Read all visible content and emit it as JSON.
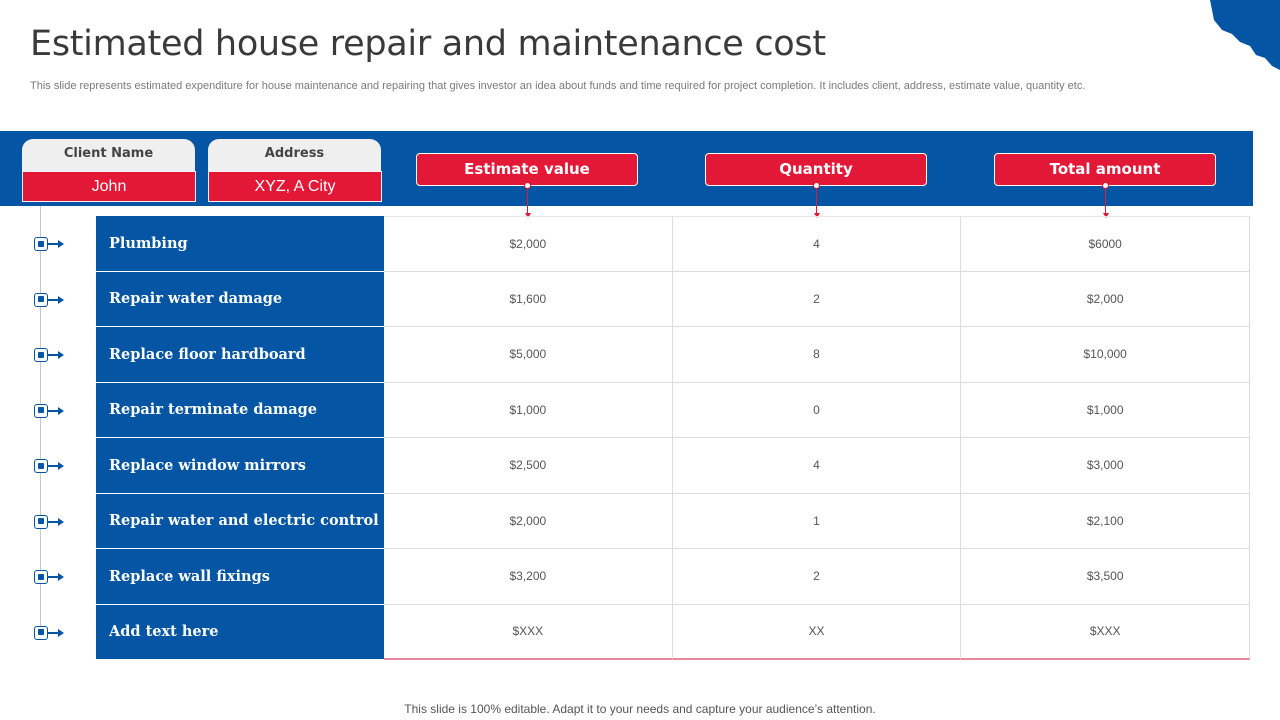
{
  "title": "Estimated house repair and maintenance cost",
  "subtitle": "This slide represents estimated expenditure for house maintenance and repairing that gives investor an idea about funds and time required for project completion. It includes client, address, estimate value, quantity etc.",
  "client": {
    "name_label": "Client Name",
    "name_value": "John",
    "address_label": "Address",
    "address_value": "XYZ, A City"
  },
  "columns": [
    "Estimate value",
    "Quantity",
    "Total amount"
  ],
  "rows": [
    {
      "label": "Plumbing",
      "estimate": "$2,000",
      "quantity": "4",
      "total": "$6000"
    },
    {
      "label": "Repair water damage",
      "estimate": "$1,600",
      "quantity": "2",
      "total": "$2,000"
    },
    {
      "label": "Replace floor hardboard",
      "estimate": "$5,000",
      "quantity": "8",
      "total": "$10,000"
    },
    {
      "label": "Repair terminate damage",
      "estimate": "$1,000",
      "quantity": "0",
      "total": "$1,000"
    },
    {
      "label": "Replace window mirrors",
      "estimate": "$2,500",
      "quantity": "4",
      "total": "$3,000"
    },
    {
      "label": "Repair water and electric control",
      "estimate": "$2,000",
      "quantity": "1",
      "total": "$2,100"
    },
    {
      "label": "Replace wall fixings",
      "estimate": "$3,200",
      "quantity": "2",
      "total": "$3,500"
    },
    {
      "label": "Add text here",
      "estimate": "$XXX",
      "quantity": "XX",
      "total": "$XXX"
    }
  ],
  "footer": "This slide is 100% editable. Adapt it to your needs and capture your audience’s attention.",
  "colors": {
    "brand_blue": "#0455a4",
    "accent_red": "#e31837"
  },
  "icons": {
    "corner": "map-decoration-icon",
    "row_marker": "square-bullet-arrow-icon"
  }
}
